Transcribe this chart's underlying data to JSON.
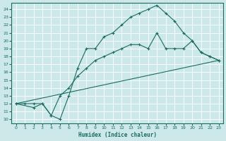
{
  "xlabel": "Humidex (Indice chaleur)",
  "background_color": "#cce8e8",
  "line_color": "#1a6b60",
  "grid_color": "#ffffff",
  "xlim": [
    -0.5,
    23.5
  ],
  "ylim": [
    9.5,
    24.8
  ],
  "xticks": [
    0,
    1,
    2,
    3,
    4,
    5,
    6,
    7,
    8,
    9,
    10,
    11,
    12,
    13,
    14,
    15,
    16,
    17,
    18,
    19,
    20,
    21,
    22,
    23
  ],
  "yticks": [
    10,
    11,
    12,
    13,
    14,
    15,
    16,
    17,
    18,
    19,
    20,
    21,
    22,
    23,
    24
  ],
  "line1_x": [
    0,
    1,
    2,
    3,
    4,
    5,
    6,
    7,
    8,
    9,
    10,
    11,
    12,
    13,
    14,
    15,
    16,
    17,
    18,
    19,
    20,
    21,
    22,
    23
  ],
  "line1_y": [
    12,
    12,
    12,
    12,
    10.5,
    10,
    13,
    16.5,
    19,
    19,
    20.5,
    21,
    22,
    23,
    23.5,
    24,
    24.5,
    23.5,
    22.5,
    21,
    20,
    18.5,
    18,
    17.5
  ],
  "line2_x": [
    0,
    2,
    3,
    4,
    5,
    6,
    7,
    8,
    9,
    10,
    11,
    12,
    13,
    14,
    15,
    16,
    17,
    18,
    19,
    20,
    21,
    22,
    23
  ],
  "line2_y": [
    12,
    11.5,
    12,
    10.5,
    13,
    14,
    15.5,
    16.5,
    17.5,
    18,
    18.5,
    19,
    19.5,
    19.5,
    19,
    21,
    19,
    19,
    19,
    20,
    18.5,
    18,
    17.5
  ],
  "line3_x": [
    0,
    23
  ],
  "line3_y": [
    12,
    17.5
  ]
}
